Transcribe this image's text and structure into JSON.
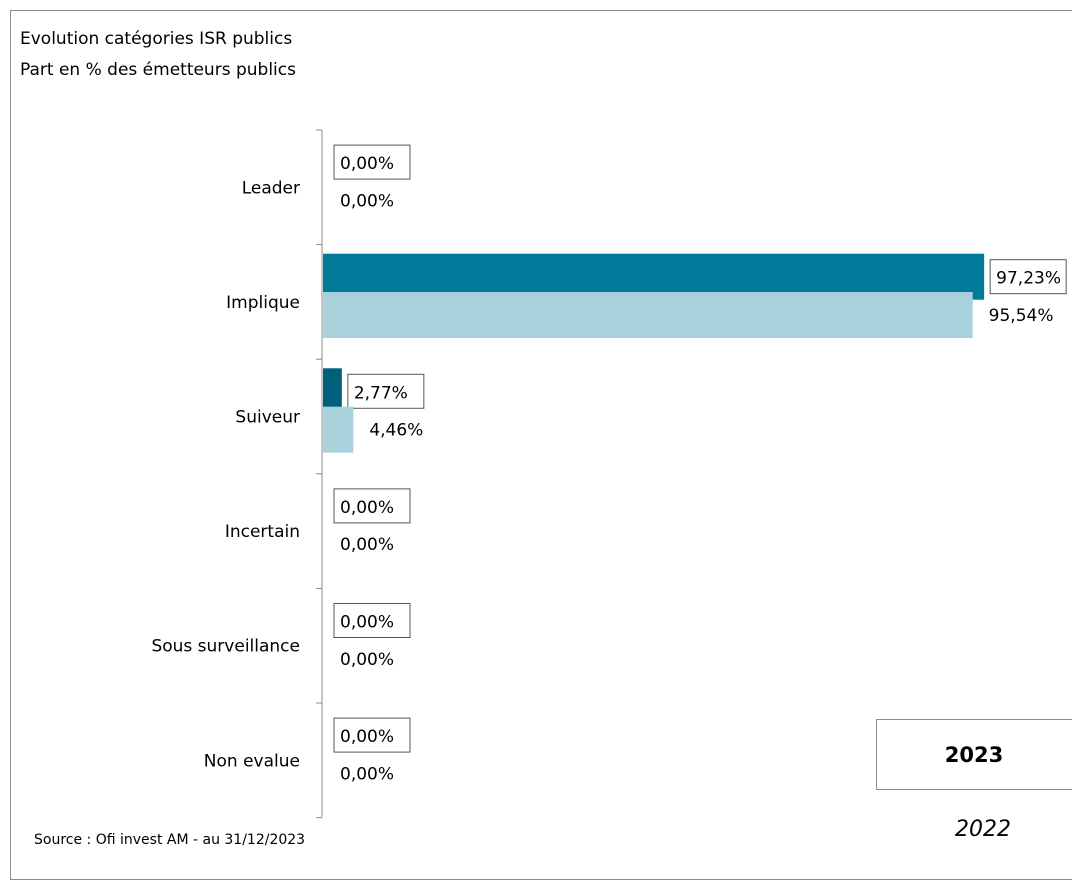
{
  "chart_data": {
    "type": "bar",
    "orientation": "horizontal",
    "title": "Evolution catégories ISR publics",
    "subtitle": "Part en % des émetteurs publics",
    "categories": [
      "Leader",
      "Implique",
      "Suiveur",
      "Incertain",
      "Sous surveillance",
      "Non evalue"
    ],
    "series": [
      {
        "name": "2023",
        "values": [
          0.0,
          97.23,
          2.77,
          0.0,
          0.0,
          0.0
        ],
        "labels": [
          "0,00%",
          "97,23%",
          "2,77%",
          "0,00%",
          "0,00%",
          "0,00%"
        ],
        "color": "#007a99",
        "label_style": "boxed"
      },
      {
        "name": "2022",
        "values": [
          0.0,
          95.54,
          4.46,
          0.0,
          0.0,
          0.0
        ],
        "labels": [
          "0,00%",
          "95,54%",
          "4,46%",
          "0,00%",
          "0,00%",
          "0,00%"
        ],
        "color": "#a8d1dc",
        "label_style": "plain"
      }
    ],
    "xlim": [
      0,
      100
    ],
    "xlabel": "",
    "ylabel": "",
    "grid": false,
    "legend_position": "bottom-right"
  },
  "source": "Source : Ofi invest AM - au 31/12/2023",
  "colors": {
    "axis": "#8c8c8c",
    "frame": "#8c8c8c",
    "dark_bar_2023": "#007a99",
    "dark_bar_small": "#005f7a",
    "light_bar_2022": "#a8d1dc"
  }
}
